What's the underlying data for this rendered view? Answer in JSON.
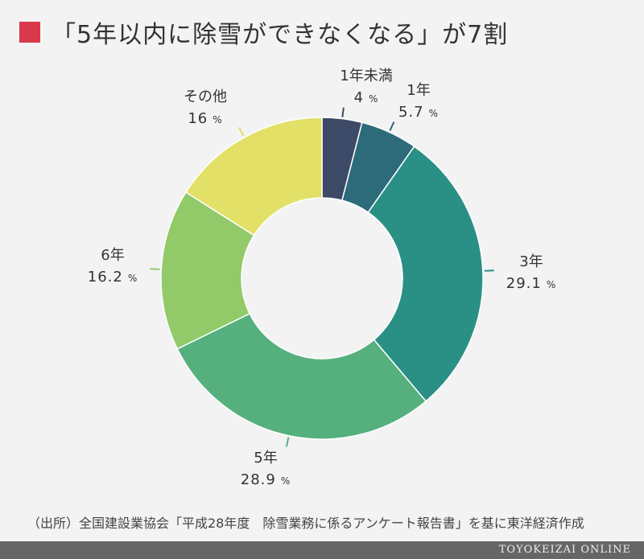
{
  "title": "「5年以内に除雪ができなくなる」が7割",
  "colors": {
    "accent": "#d9394a",
    "background": "#f3f3f3",
    "footer": "#666666"
  },
  "chart_data": {
    "type": "pie",
    "unit": "%",
    "categories": [
      "1年未満",
      "1年",
      "3年",
      "5年",
      "6年",
      "その他"
    ],
    "values": [
      4,
      5.7,
      29.1,
      28.9,
      16.2,
      16
    ],
    "value_labels": [
      "4",
      "5.7",
      "29.1",
      "28.9",
      "16.2",
      "16"
    ],
    "colors": [
      "#3c4a68",
      "#2d6a7a",
      "#2a9086",
      "#55b07e",
      "#92ca6a",
      "#e2e067"
    ],
    "donut": true
  },
  "source": "（出所）全国建設業協会「平成28年度　除雪業務に係るアンケート報告書」を基に東洋経済作成",
  "brand": "TOYOKEIZAI ONLINE"
}
